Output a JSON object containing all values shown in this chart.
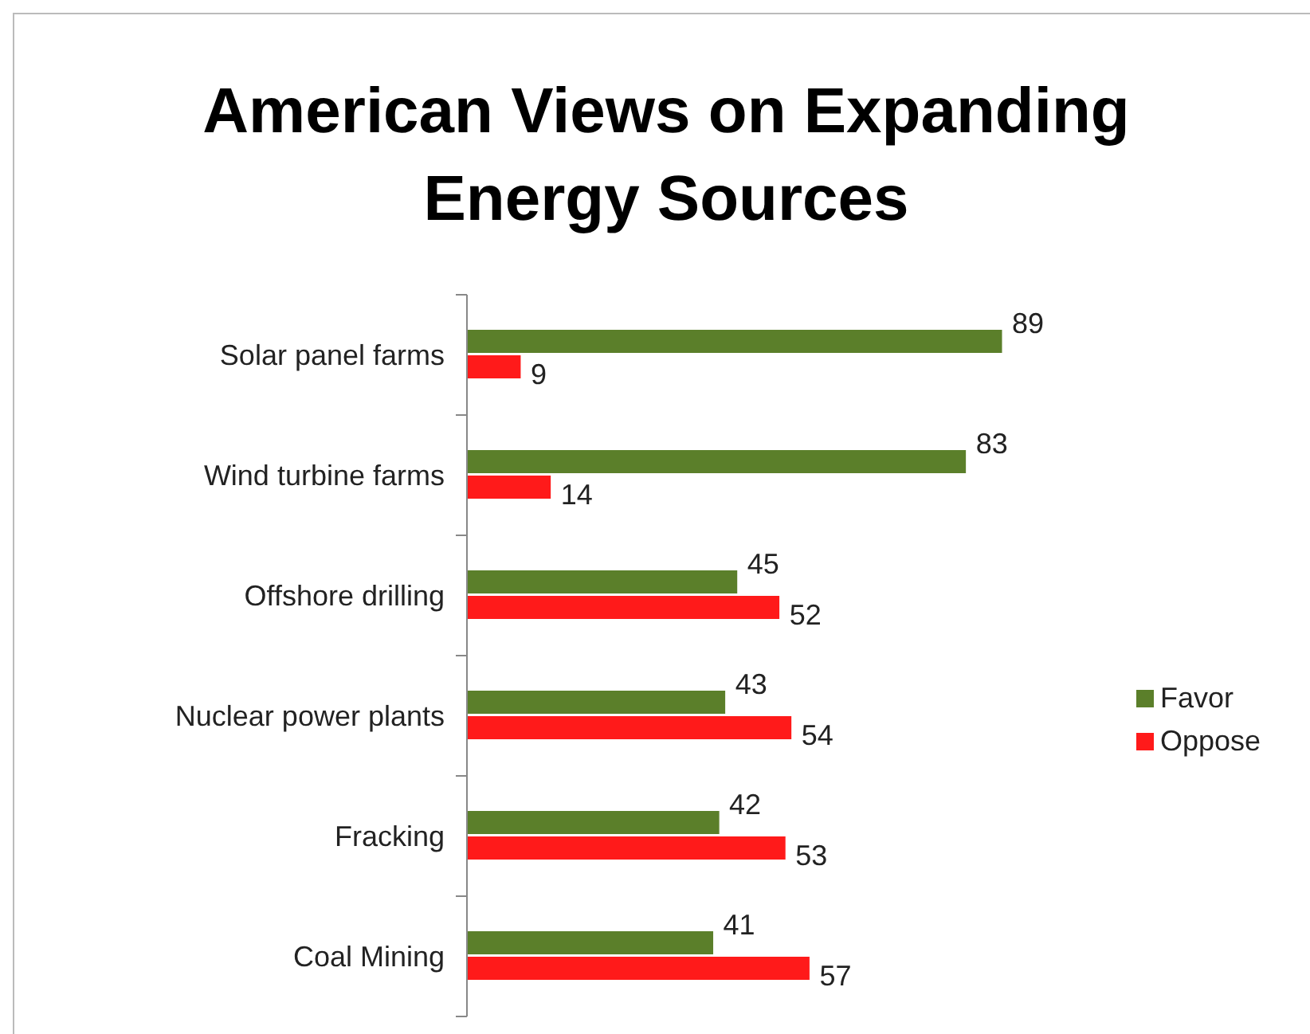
{
  "chart_data": {
    "type": "bar",
    "orientation": "horizontal",
    "title": "American Views on Expanding Energy Sources",
    "categories": [
      "Solar panel farms",
      "Wind turbine farms",
      "Offshore drilling",
      "Nuclear power plants",
      "Fracking",
      "Coal Mining"
    ],
    "series": [
      {
        "name": "Favor",
        "color": "#5b7f2a",
        "values": [
          89,
          83,
          45,
          43,
          42,
          41
        ]
      },
      {
        "name": "Oppose",
        "color": "#ff1a1a",
        "values": [
          9,
          14,
          52,
          54,
          53,
          57
        ]
      }
    ],
    "data_labels": true,
    "legend": "right",
    "grid": false
  }
}
